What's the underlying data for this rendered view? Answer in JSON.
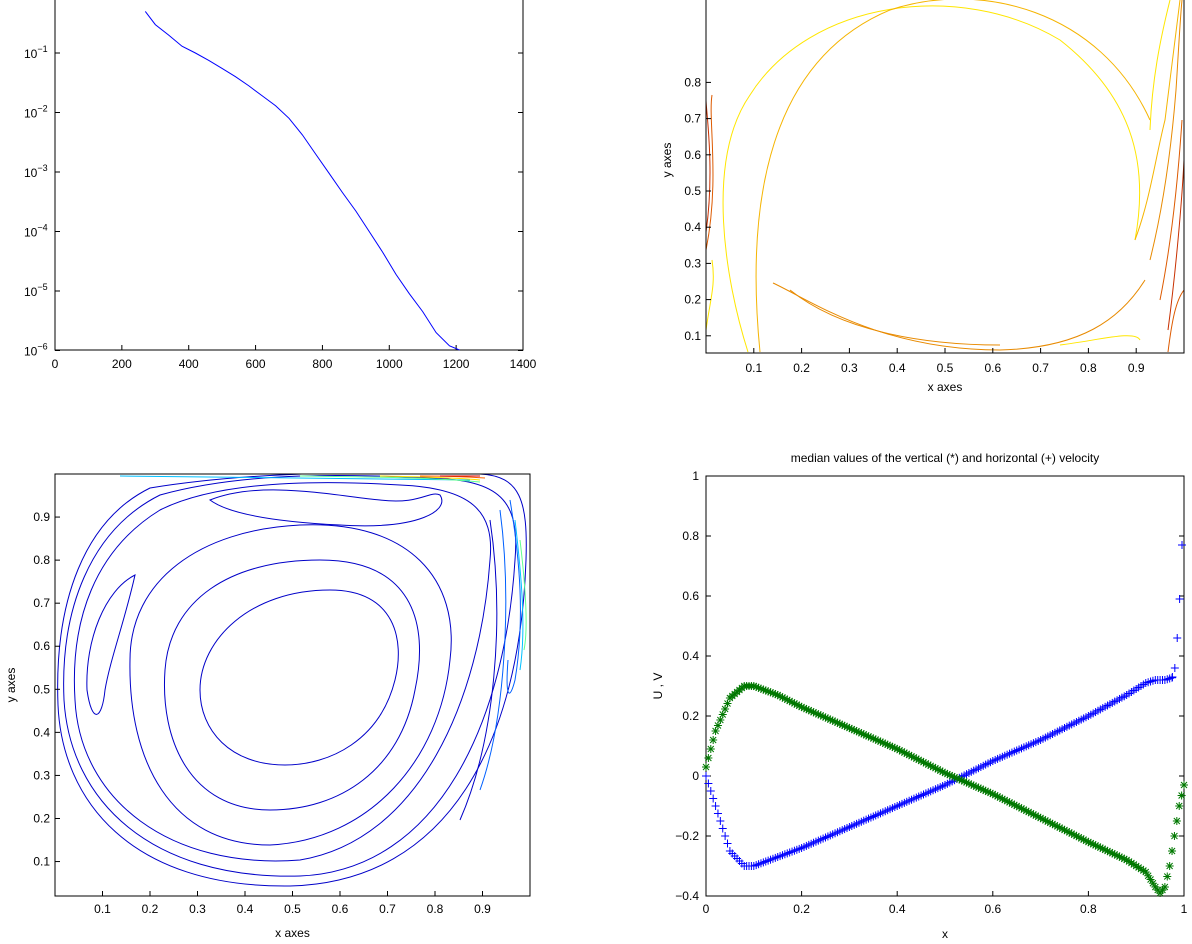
{
  "chart_data": [
    {
      "type": "line",
      "panel": "convergence",
      "title": "",
      "xlabel": "",
      "ylabel": "",
      "xlim": [
        0,
        1400
      ],
      "ylim_log10": [
        -6,
        0.3
      ],
      "yscale": "log",
      "x_ticks": [
        "0",
        "200",
        "400",
        "600",
        "800",
        "1000",
        "1200",
        "1400"
      ],
      "y_ticks": [
        {
          "base": "10",
          "exp": "−1"
        },
        {
          "base": "10",
          "exp": "−2"
        },
        {
          "base": "10",
          "exp": "−3"
        },
        {
          "base": "10",
          "exp": "−4"
        },
        {
          "base": "10",
          "exp": "−5"
        },
        {
          "base": "10",
          "exp": "−6"
        }
      ],
      "line_color": "#0000ff",
      "series": [
        {
          "x": [
            270,
            300,
            340,
            380,
            420,
            460,
            500,
            540,
            580,
            620,
            660,
            700,
            740,
            780,
            820,
            860,
            900,
            940,
            980,
            1020,
            1060,
            1100,
            1140,
            1180,
            1210
          ],
          "y": [
            0.5,
            0.3,
            0.2,
            0.13,
            0.1,
            0.075,
            0.055,
            0.04,
            0.028,
            0.019,
            0.013,
            0.008,
            0.0042,
            0.002,
            0.00095,
            0.00045,
            0.00022,
            0.0001,
            4.5e-05,
            1.9e-05,
            9e-06,
            4.5e-06,
            2e-06,
            1.2e-06,
            8.5e-07
          ]
        }
      ]
    },
    {
      "type": "contour",
      "panel": "pressure-contours",
      "title": "",
      "xlabel": "x axes",
      "ylabel": "y axes",
      "xlim": [
        0,
        1
      ],
      "ylim": [
        0,
        1
      ],
      "x_ticks": [
        "0.1",
        "0.2",
        "0.3",
        "0.4",
        "0.5",
        "0.6",
        "0.7",
        "0.8",
        "0.9"
      ],
      "y_ticks": [
        "0.1",
        "0.2",
        "0.3",
        "0.4",
        "0.5",
        "0.6",
        "0.7",
        "0.8"
      ],
      "colormap": "hot",
      "colors": [
        "#ffe600",
        "#f5b400",
        "#e88a00",
        "#dd5a00",
        "#c83000"
      ]
    },
    {
      "type": "contour",
      "panel": "streamline-contours",
      "title": "",
      "xlabel": "x axes",
      "ylabel": "y axes",
      "xlim": [
        0,
        1
      ],
      "ylim": [
        0,
        1
      ],
      "x_ticks": [
        "0.1",
        "0.2",
        "0.3",
        "0.4",
        "0.5",
        "0.6",
        "0.7",
        "0.8",
        "0.9"
      ],
      "y_ticks": [
        "0.1",
        "0.2",
        "0.3",
        "0.4",
        "0.5",
        "0.6",
        "0.7",
        "0.8",
        "0.9"
      ],
      "colormap": "jet",
      "colors": [
        "#0000c8",
        "#0060ff",
        "#00c0ff",
        "#60ff90",
        "#ffe000",
        "#ff6000",
        "#d00000"
      ]
    },
    {
      "type": "scatter",
      "panel": "median-velocity",
      "title": "median values of the vertical (*) and horizontal (+) velocity",
      "xlabel": "x",
      "ylabel": "U , V",
      "xlim": [
        0,
        1
      ],
      "ylim": [
        -0.4,
        1
      ],
      "x_ticks": [
        "0",
        "0.2",
        "0.4",
        "0.6",
        "0.8",
        "1"
      ],
      "y_ticks": [
        "1",
        "0.8",
        "0.6",
        "0.4",
        "0.2",
        "0",
        "−0.2",
        "−0.4"
      ],
      "series": [
        {
          "marker": "+",
          "color": "#0000ff",
          "x": [
            0,
            0.02,
            0.05,
            0.08,
            0.1,
            0.15,
            0.2,
            0.3,
            0.4,
            0.5,
            0.6,
            0.7,
            0.8,
            0.88,
            0.92,
            0.94,
            0.96,
            0.98,
            0.985,
            0.99,
            0.995,
            1.0
          ],
          "y": [
            0,
            -0.1,
            -0.25,
            -0.3,
            -0.3,
            -0.27,
            -0.24,
            -0.17,
            -0.1,
            -0.03,
            0.05,
            0.12,
            0.2,
            0.27,
            0.31,
            0.32,
            0.32,
            0.33,
            0.36,
            0.46,
            0.59,
            0.77
          ]
        },
        {
          "marker": "*",
          "color": "#007800",
          "x": [
            0,
            0.02,
            0.05,
            0.08,
            0.1,
            0.15,
            0.2,
            0.3,
            0.4,
            0.5,
            0.6,
            0.7,
            0.8,
            0.88,
            0.92,
            0.94,
            0.95,
            0.96,
            0.97,
            0.98,
            0.99,
            1.0
          ],
          "y": [
            0.03,
            0.15,
            0.26,
            0.3,
            0.3,
            0.27,
            0.23,
            0.16,
            0.09,
            0.01,
            -0.06,
            -0.14,
            -0.22,
            -0.28,
            -0.32,
            -0.37,
            -0.39,
            -0.37,
            -0.3,
            -0.2,
            -0.1,
            -0.03
          ]
        }
      ]
    }
  ]
}
